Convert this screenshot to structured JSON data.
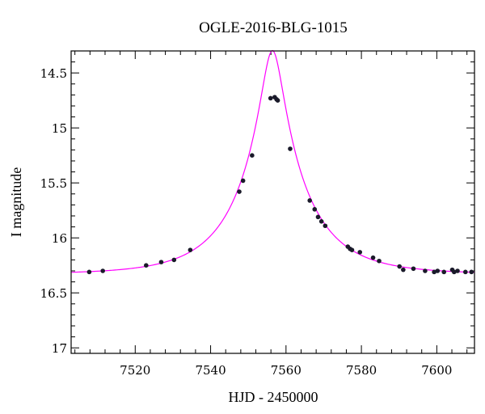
{
  "chart_data": {
    "type": "scatter",
    "title": "OGLE-2016-BLG-1015",
    "xlabel": "HJD - 2450000",
    "ylabel": "I magnitude",
    "xlim": [
      7503,
      7610
    ],
    "ylim": [
      17.05,
      14.3
    ],
    "y_inverted": true,
    "x_ticks": [
      7520,
      7540,
      7560,
      7580,
      7600
    ],
    "y_ticks": [
      14.5,
      15,
      15.5,
      16,
      16.5,
      17
    ],
    "y_tick_labels": [
      "14.5",
      "15",
      "15.5",
      "16",
      "16.5",
      "17"
    ],
    "x_minor_step": 4,
    "y_minor_step": 0.1,
    "grid": false,
    "series": [
      {
        "kind": "points",
        "color": "#1a1a2a",
        "x": [
          7507.8,
          7511.4,
          7522.9,
          7526.9,
          7530.3,
          7534.6,
          7547.6,
          7548.6,
          7551.0,
          7555.9,
          7557.0,
          7557.5,
          7557.8,
          7561.1,
          7566.3,
          7567.6,
          7568.5,
          7569.4,
          7570.4,
          7576.4,
          7577.0,
          7577.5,
          7579.6,
          7583.1,
          7584.7,
          7590.1,
          7591.1,
          7593.8,
          7596.9,
          7599.3,
          7600.2,
          7601.9,
          7604.1,
          7604.6,
          7605.5,
          7607.6,
          7609.2
        ],
        "y": [
          16.31,
          16.3,
          16.25,
          16.22,
          16.2,
          16.11,
          15.58,
          15.48,
          15.25,
          14.73,
          14.72,
          14.74,
          14.75,
          15.19,
          15.66,
          15.74,
          15.81,
          15.85,
          15.89,
          16.08,
          16.1,
          16.11,
          16.13,
          16.18,
          16.21,
          16.26,
          16.29,
          16.28,
          16.3,
          16.31,
          16.3,
          16.31,
          16.29,
          16.31,
          16.3,
          16.31,
          16.31
        ]
      },
      {
        "kind": "model",
        "color": "#ff00ff",
        "baseline_mag": 16.33,
        "t0": 7556.4,
        "u0": 0.155,
        "tE": 17.5
      }
    ]
  }
}
